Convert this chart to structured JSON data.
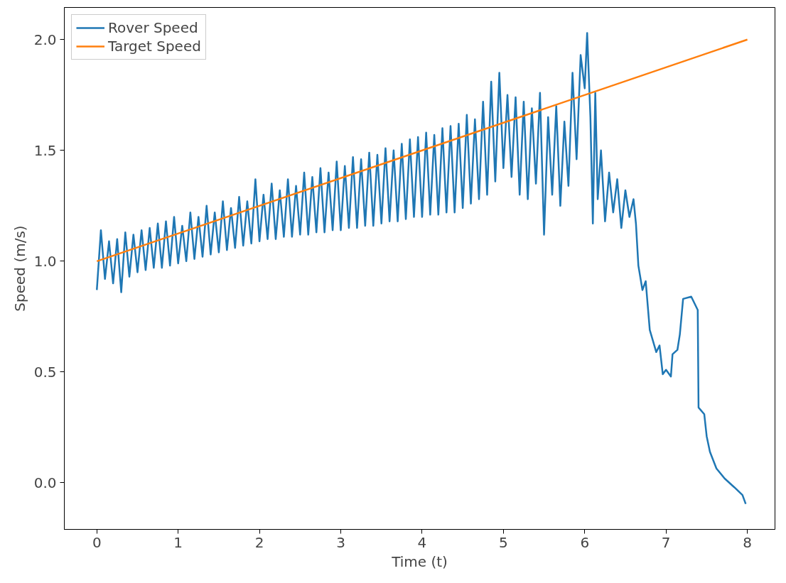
{
  "chart_data": {
    "type": "line",
    "xlabel": "Time (t)",
    "ylabel": "Speed (m/s)",
    "xlim": [
      -0.4,
      8.34
    ],
    "ylim": [
      -0.21,
      2.145
    ],
    "xticks": [
      0,
      1,
      2,
      3,
      4,
      5,
      6,
      7,
      8
    ],
    "yticks": [
      {
        "value": 0,
        "label": "0.0"
      },
      0.5,
      {
        "value": 1,
        "label": "1.0"
      },
      1.5,
      {
        "value": 2,
        "label": "2.0"
      }
    ],
    "grid": false,
    "legend": "top left",
    "line_style": "solid",
    "series": [
      {
        "name": "Rover Speed",
        "color": "#1f77b4",
        "x": [
          0,
          0.05,
          0.1,
          0.15,
          0.2,
          0.25,
          0.3,
          0.35,
          0.4,
          0.45,
          0.5,
          0.55,
          0.6,
          0.65,
          0.7,
          0.75,
          0.8,
          0.85,
          0.9,
          0.95,
          1.0,
          1.05,
          1.1,
          1.15,
          1.2,
          1.25,
          1.3,
          1.35,
          1.4,
          1.45,
          1.5,
          1.55,
          1.6,
          1.65,
          1.7,
          1.75,
          1.8,
          1.85,
          1.9,
          1.95,
          2.0,
          2.05,
          2.1,
          2.15,
          2.2,
          2.25,
          2.3,
          2.35,
          2.4,
          2.45,
          2.5,
          2.55,
          2.6,
          2.65,
          2.7,
          2.75,
          2.8,
          2.85,
          2.9,
          2.95,
          3.0,
          3.05,
          3.1,
          3.15,
          3.2,
          3.25,
          3.3,
          3.35,
          3.4,
          3.45,
          3.5,
          3.55,
          3.6,
          3.65,
          3.7,
          3.75,
          3.8,
          3.85,
          3.9,
          3.95,
          4.0,
          4.05,
          4.1,
          4.15,
          4.2,
          4.25,
          4.3,
          4.35,
          4.4,
          4.45,
          4.5,
          4.55,
          4.6,
          4.65,
          4.7,
          4.75,
          4.8,
          4.85,
          4.9,
          4.95,
          5.0,
          5.05,
          5.1,
          5.15,
          5.2,
          5.25,
          5.3,
          5.35,
          5.4,
          5.45,
          5.5,
          5.55,
          5.6,
          5.65,
          5.7,
          5.75,
          5.8,
          5.85,
          5.9,
          5.95,
          6.0,
          6.03,
          6.07,
          6.1,
          6.13,
          6.16,
          6.2,
          6.25,
          6.3,
          6.35,
          6.4,
          6.45,
          6.5,
          6.55,
          6.6,
          6.63,
          6.66,
          6.71,
          6.75,
          6.8,
          6.88,
          6.92,
          6.96,
          7.0,
          7.06,
          7.08,
          7.14,
          7.17,
          7.21,
          7.31,
          7.39,
          7.4,
          7.47,
          7.5,
          7.54,
          7.62,
          7.72,
          7.84,
          7.94,
          7.98
        ],
        "values": [
          0.87,
          1.14,
          0.92,
          1.09,
          0.9,
          1.1,
          0.86,
          1.13,
          0.93,
          1.12,
          0.95,
          1.14,
          0.96,
          1.15,
          0.97,
          1.17,
          0.97,
          1.18,
          0.98,
          1.2,
          0.99,
          1.16,
          1.0,
          1.22,
          1.01,
          1.2,
          1.02,
          1.25,
          1.03,
          1.22,
          1.04,
          1.27,
          1.05,
          1.24,
          1.06,
          1.29,
          1.07,
          1.27,
          1.08,
          1.37,
          1.09,
          1.3,
          1.1,
          1.35,
          1.1,
          1.32,
          1.11,
          1.37,
          1.11,
          1.34,
          1.12,
          1.4,
          1.12,
          1.38,
          1.13,
          1.42,
          1.13,
          1.4,
          1.14,
          1.45,
          1.14,
          1.43,
          1.15,
          1.47,
          1.15,
          1.46,
          1.16,
          1.49,
          1.16,
          1.48,
          1.17,
          1.51,
          1.18,
          1.5,
          1.18,
          1.53,
          1.19,
          1.55,
          1.2,
          1.56,
          1.2,
          1.58,
          1.21,
          1.57,
          1.21,
          1.6,
          1.22,
          1.61,
          1.22,
          1.62,
          1.24,
          1.66,
          1.26,
          1.64,
          1.28,
          1.72,
          1.3,
          1.81,
          1.36,
          1.85,
          1.42,
          1.75,
          1.38,
          1.74,
          1.3,
          1.72,
          1.28,
          1.69,
          1.35,
          1.76,
          1.12,
          1.65,
          1.3,
          1.7,
          1.25,
          1.63,
          1.34,
          1.85,
          1.46,
          1.93,
          1.78,
          2.03,
          1.65,
          1.17,
          1.76,
          1.28,
          1.5,
          1.18,
          1.4,
          1.22,
          1.37,
          1.15,
          1.32,
          1.2,
          1.28,
          1.17,
          0.98,
          0.87,
          0.91,
          0.69,
          0.59,
          0.62,
          0.49,
          0.51,
          0.48,
          0.58,
          0.6,
          0.67,
          0.83,
          0.84,
          0.78,
          0.34,
          0.31,
          0.21,
          0.14,
          0.065,
          0.02,
          -0.02,
          -0.055,
          -0.095
        ]
      },
      {
        "name": "Target Speed",
        "color": "#ff7f0e",
        "x": [
          0,
          8
        ],
        "values": [
          1.0,
          2.0
        ]
      }
    ]
  }
}
